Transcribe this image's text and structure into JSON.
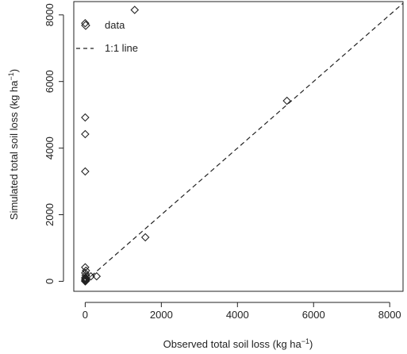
{
  "chart_data": {
    "type": "scatter",
    "xlabel": "Observed  total soil loss (kg ha",
    "ylabel": "Simulated total soil loss (kg ha",
    "axis_unit_exponent": "−1",
    "axis_unit_close": ")",
    "xlim": [
      -300,
      8350
    ],
    "ylim": [
      -300,
      8400
    ],
    "x_ticks": [
      0,
      2000,
      4000,
      6000,
      8000
    ],
    "y_ticks": [
      0,
      2000,
      4000,
      6000,
      8000
    ],
    "grid": false,
    "legend_position": "top-left",
    "series": [
      {
        "name": "data",
        "marker": "open-diamond",
        "points": [
          {
            "x": 0,
            "y": 7750
          },
          {
            "x": 1300,
            "y": 8150
          },
          {
            "x": 0,
            "y": 4920
          },
          {
            "x": 0,
            "y": 4420
          },
          {
            "x": 0,
            "y": 3300
          },
          {
            "x": 1580,
            "y": 1320
          },
          {
            "x": 5300,
            "y": 5420
          },
          {
            "x": 0,
            "y": 420
          },
          {
            "x": 20,
            "y": 320
          },
          {
            "x": 0,
            "y": 250
          },
          {
            "x": 10,
            "y": 180
          },
          {
            "x": 40,
            "y": 140
          },
          {
            "x": 0,
            "y": 110
          },
          {
            "x": 20,
            "y": 90
          },
          {
            "x": 0,
            "y": 70
          },
          {
            "x": 30,
            "y": 60
          },
          {
            "x": 10,
            "y": 40
          },
          {
            "x": 0,
            "y": 30
          },
          {
            "x": 20,
            "y": 20
          },
          {
            "x": 0,
            "y": 10
          },
          {
            "x": 10,
            "y": 5
          },
          {
            "x": 0,
            "y": 0
          },
          {
            "x": 150,
            "y": 150
          },
          {
            "x": 300,
            "y": 150
          }
        ]
      },
      {
        "name": "1:1 line",
        "style": "dashed",
        "points": [
          {
            "x": 0,
            "y": 0
          },
          {
            "x": 8350,
            "y": 8350
          }
        ]
      }
    ]
  }
}
